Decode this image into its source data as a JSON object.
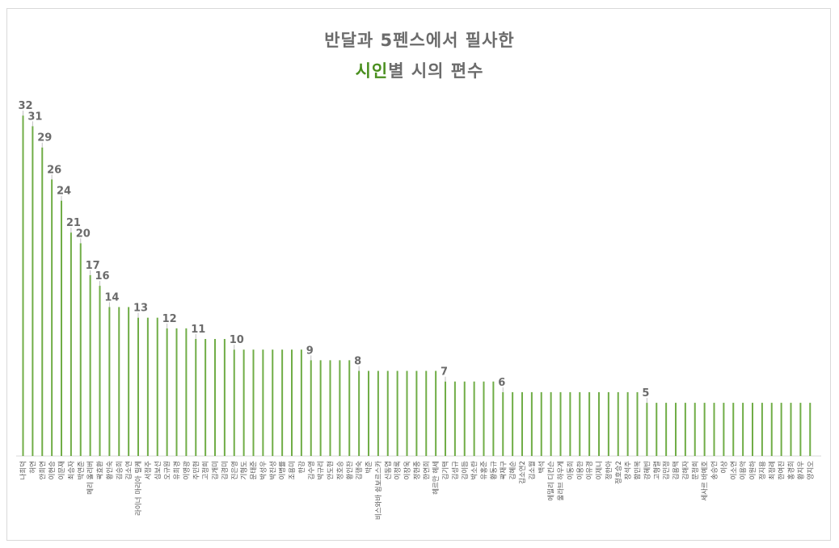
{
  "title_line1": "반달과 5펜스에서 필사한",
  "title_line2_accent": "시인",
  "title_line2_rest": "별 시의 편수",
  "colors": {
    "bar": "#70ad47",
    "accent": "#4a8f1f",
    "text": "#6b6b6b"
  },
  "chart_data": {
    "type": "bar",
    "title": "반달과 5펜스에서 필사한 시인별 시의 편수",
    "xlabel": "",
    "ylabel": "",
    "ylim": [
      0,
      33
    ],
    "grid": false,
    "legend": "none",
    "categories": [
      "나희덕",
      "허연",
      "안희연",
      "이현승",
      "이문재",
      "최승자",
      "박연준",
      "메리 올리버",
      "곽효환",
      "황인숙",
      "김승희",
      "김소연",
      "라이너 마리아 릴케",
      "서정주",
      "심보선",
      "오규원",
      "유희경",
      "이영광",
      "주민현",
      "고정희",
      "김개미",
      "김경미",
      "진은영",
      "기형도",
      "문태준",
      "박성우",
      "박진성",
      "이병률",
      "조용미",
      "한강",
      "김수영",
      "박규리",
      "안도현",
      "정호승",
      "황인찬",
      "김행숙",
      "박준",
      "비스와바 쉼보르스카",
      "신동엽",
      "이정록",
      "이장욱",
      "정현종",
      "한연희",
      "헤르만 헤세",
      "김기택",
      "김성규",
      "김이듬",
      "박소란",
      "유홍준",
      "황동규",
      "곽재구",
      "김혜순",
      "김소연2",
      "김소월",
      "백석",
      "에밀리 디킨슨",
      "울라브 하우게",
      "이동희",
      "이용한",
      "이유경",
      "이제니",
      "정한아",
      "정호승2",
      "장석주",
      "함민복",
      "강혜빈",
      "고형렬",
      "김민정",
      "김용택",
      "김해자",
      "문정희",
      "세사르 바예호",
      "송승언",
      "이상",
      "이소연",
      "이용악",
      "이원하",
      "정지용",
      "최정례",
      "한여진",
      "홍경희",
      "황지우",
      "양지오"
    ],
    "values": [
      32,
      31,
      29,
      26,
      24,
      21,
      20,
      17,
      16,
      14,
      14,
      14,
      13,
      13,
      13,
      12,
      12,
      12,
      11,
      11,
      11,
      11,
      10,
      10,
      10,
      10,
      10,
      10,
      10,
      10,
      9,
      9,
      9,
      9,
      9,
      8,
      8,
      8,
      8,
      8,
      8,
      8,
      8,
      8,
      7,
      7,
      7,
      7,
      7,
      7,
      6,
      6,
      6,
      6,
      6,
      6,
      6,
      6,
      6,
      6,
      6,
      6,
      6,
      6,
      6,
      5,
      5,
      5,
      5,
      5,
      5,
      5,
      5,
      5,
      5,
      5,
      5,
      5,
      5,
      5,
      5,
      5,
      5
    ],
    "data_labels": [
      {
        "index": 0,
        "text": "32"
      },
      {
        "index": 1,
        "text": "31"
      },
      {
        "index": 2,
        "text": "29"
      },
      {
        "index": 3,
        "text": "26"
      },
      {
        "index": 4,
        "text": "24"
      },
      {
        "index": 5,
        "text": "21"
      },
      {
        "index": 6,
        "text": "20"
      },
      {
        "index": 7,
        "text": "17"
      },
      {
        "index": 8,
        "text": "16"
      },
      {
        "index": 9,
        "text": "14"
      },
      {
        "index": 12,
        "text": "13"
      },
      {
        "index": 15,
        "text": "12"
      },
      {
        "index": 18,
        "text": "11"
      },
      {
        "index": 22,
        "text": "10"
      },
      {
        "index": 30,
        "text": "9"
      },
      {
        "index": 35,
        "text": "8"
      },
      {
        "index": 44,
        "text": "7"
      },
      {
        "index": 50,
        "text": "6"
      },
      {
        "index": 65,
        "text": "5"
      }
    ]
  }
}
